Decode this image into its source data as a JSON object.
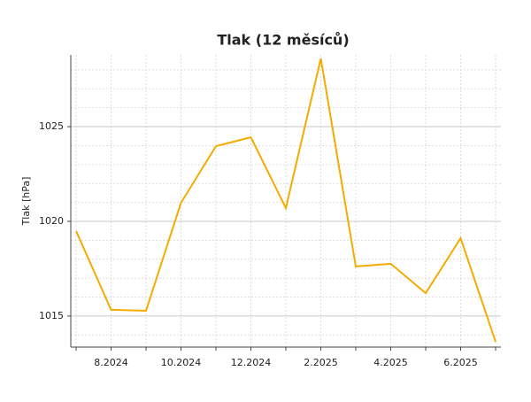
{
  "chart_data": {
    "type": "line",
    "title": "Tlak (12 měsíců)",
    "y_label": "Tlak [hPa]",
    "categories": [
      null,
      "8.2024",
      null,
      "10.2024",
      null,
      "12.2024",
      null,
      "2.2025",
      null,
      "4.2025",
      null,
      "6.2025",
      null
    ],
    "series": [
      {
        "name": "Tlak",
        "color": "#f5ab00",
        "values": [
          1019.49,
          1015.33,
          1015.28,
          1020.98,
          1023.97,
          1024.44,
          1020.7,
          1028.6,
          1017.62,
          1017.76,
          1016.21,
          1019.11,
          1013.64
        ]
      }
    ],
    "ylim": [
      1013.36,
      1028.79
    ],
    "yticks": [
      1015,
      1020,
      1025
    ],
    "minor_yticks": [
      1014,
      1016,
      1017,
      1018,
      1019,
      1021,
      1022,
      1023,
      1024,
      1026,
      1027,
      1028
    ],
    "grid": true
  }
}
